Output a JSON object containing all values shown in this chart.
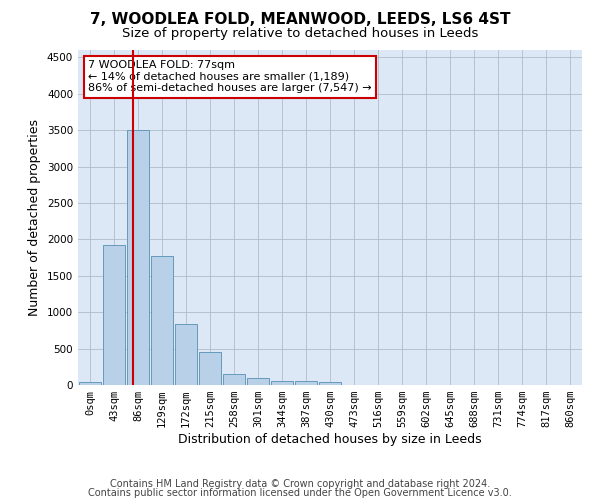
{
  "title": "7, WOODLEA FOLD, MEANWOOD, LEEDS, LS6 4ST",
  "subtitle": "Size of property relative to detached houses in Leeds",
  "xlabel": "Distribution of detached houses by size in Leeds",
  "ylabel": "Number of detached properties",
  "bar_color": "#b8d0e8",
  "bar_edge_color": "#6699bb",
  "annotation_box_color": "#cc0000",
  "vline_color": "#cc0000",
  "categories": [
    "0sqm",
    "43sqm",
    "86sqm",
    "129sqm",
    "172sqm",
    "215sqm",
    "258sqm",
    "301sqm",
    "344sqm",
    "387sqm",
    "430sqm",
    "473sqm",
    "516sqm",
    "559sqm",
    "602sqm",
    "645sqm",
    "688sqm",
    "731sqm",
    "774sqm",
    "817sqm",
    "860sqm"
  ],
  "values": [
    40,
    1920,
    3500,
    1770,
    840,
    460,
    155,
    90,
    55,
    50,
    35,
    0,
    0,
    0,
    0,
    0,
    0,
    0,
    0,
    0,
    0
  ],
  "ylim": [
    0,
    4600
  ],
  "yticks": [
    0,
    500,
    1000,
    1500,
    2000,
    2500,
    3000,
    3500,
    4000,
    4500
  ],
  "annotation_line1": "7 WOODLEA FOLD: 77sqm",
  "annotation_line2": "← 14% of detached houses are smaller (1,189)",
  "annotation_line3": "86% of semi-detached houses are larger (7,547) →",
  "footer_line1": "Contains HM Land Registry data © Crown copyright and database right 2024.",
  "footer_line2": "Contains public sector information licensed under the Open Government Licence v3.0.",
  "bg_color": "#ffffff",
  "plot_bg_color": "#dce8f5",
  "grid_color": "#b0bec8",
  "title_fontsize": 11,
  "subtitle_fontsize": 9.5,
  "tick_fontsize": 7.5,
  "ylabel_fontsize": 9,
  "xlabel_fontsize": 9,
  "footer_fontsize": 7
}
